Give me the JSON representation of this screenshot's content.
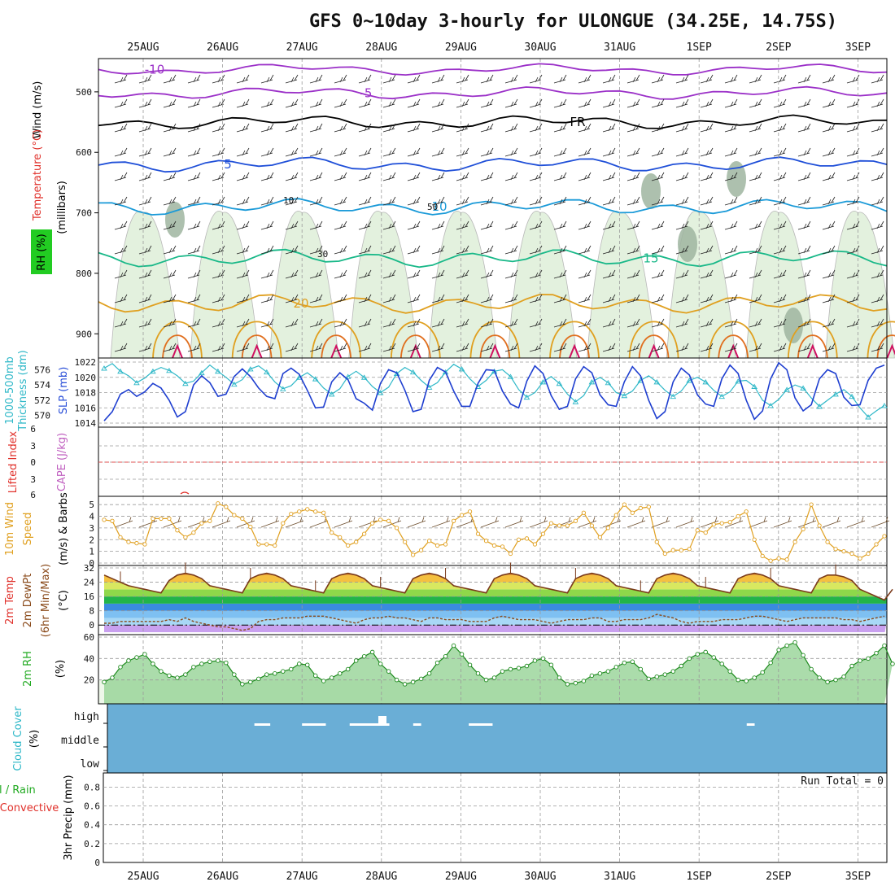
{
  "title": "GFS 0~10day 3-hourly for ULONGUE (34.25E, 14.75S)",
  "dates": [
    "25AUG",
    "26AUG",
    "27AUG",
    "28AUG",
    "29AUG",
    "30AUG",
    "31AUG",
    "1SEP",
    "2SEP",
    "3SEP"
  ],
  "chart_data": [
    {
      "type": "contour",
      "panel": "upper-air",
      "ylabels": [
        "Wind (m/s)",
        "Temperature (°C)",
        "(millibars)",
        "RH (%)"
      ],
      "ylabel_colors": [
        "#000000",
        "#e0302a",
        "#000000",
        "#22aa22"
      ],
      "yticks": [
        500,
        600,
        700,
        800,
        900
      ],
      "ylim": [
        940,
        445
      ],
      "temperature_isotherms": [
        {
          "label": "-10",
          "pressure_mb": 463,
          "color": "#9b30c8"
        },
        {
          "label": "-5",
          "pressure_mb": 502,
          "color": "#9b30c8"
        },
        {
          "label": "FR",
          "pressure_mb": 550,
          "color": "#000000"
        },
        {
          "label": "5",
          "pressure_mb": 620,
          "color": "#1f4fd8"
        },
        {
          "label": "10",
          "pressure_mb": 690,
          "color": "#1a9ad8"
        },
        {
          "label": "15",
          "pressure_mb": 775,
          "color": "#18b888"
        },
        {
          "label": "20",
          "pressure_mb": 850,
          "color": "#e0a020"
        }
      ],
      "rh_labels": [
        "10",
        "30",
        "50"
      ]
    },
    {
      "type": "line",
      "panel": "slp-thickness",
      "ylabels": [
        "1000-500mb",
        "Thickness (dm)",
        "SLP (mb)"
      ],
      "ylabel_colors": [
        "#2fb8c8",
        "#2fb8c8",
        "#2a4fd8"
      ],
      "series": [
        {
          "name": "SLP",
          "color": "#1f3fd0",
          "axis": [
            1014,
            1022
          ],
          "values": [
            1014.3,
            1015.5,
            1017.8,
            1018.4,
            1017.5,
            1018.1,
            1019.2,
            1018.6,
            1017.0,
            1014.8,
            1015.5,
            1019.0,
            1020.2,
            1019.3,
            1017.5,
            1017.8,
            1020.1,
            1021.1,
            1020.1,
            1018.6,
            1017.5,
            1017.2,
            1020.5,
            1021.2,
            1020.4,
            1018.3,
            1016.0,
            1016.1,
            1019.4,
            1020.6,
            1019.7,
            1017.2,
            1016.6,
            1015.7,
            1019.2,
            1021.0,
            1020.6,
            1018.3,
            1015.5,
            1015.8,
            1019.6,
            1021.3,
            1020.7,
            1018.2,
            1016.2,
            1016.2,
            1019.2,
            1021.0,
            1020.9,
            1018.2,
            1016.5,
            1016.0,
            1019.5,
            1021.5,
            1020.5,
            1017.6,
            1015.8,
            1016.2,
            1019.8,
            1021.4,
            1020.6,
            1017.7,
            1016.4,
            1016.2,
            1019.4,
            1021.4,
            1020.2,
            1017.0,
            1014.6,
            1015.5,
            1019.4,
            1021.2,
            1020.3,
            1017.7,
            1016.5,
            1016.2,
            1019.8,
            1021.6,
            1020.5,
            1017.0,
            1014.5,
            1015.6,
            1019.8,
            1021.9,
            1021.0,
            1017.3,
            1015.6,
            1016.4,
            1019.8,
            1021.0,
            1020.5,
            1017.4,
            1016.3,
            1016.4,
            1019.6,
            1021.2,
            1021.6
          ]
        },
        {
          "name": "Thickness",
          "color": "#2fb8c8",
          "axis": [
            569,
            577
          ],
          "values": [
            576.2,
            576.8,
            575.8,
            575.2,
            574.3,
            574.9,
            575.8,
            576.3,
            575.9,
            575.2,
            574.2,
            574.5,
            575.6,
            576.6,
            575.8,
            575.0,
            574.1,
            574.7,
            576.1,
            576.5,
            575.7,
            574.4,
            573.5,
            573.9,
            575.0,
            575.6,
            574.8,
            573.6,
            572.8,
            573.5,
            575.1,
            575.8,
            575.0,
            573.8,
            573.0,
            573.7,
            575.5,
            576.3,
            575.7,
            574.6,
            573.7,
            574.3,
            575.7,
            576.7,
            576.1,
            574.8,
            573.8,
            574.6,
            575.8,
            576.0,
            575.1,
            573.4,
            572.4,
            573.0,
            574.4,
            575.1,
            574.2,
            572.8,
            571.8,
            572.6,
            574.4,
            575.0,
            574.3,
            573.0,
            572.6,
            573.2,
            574.6,
            575.2,
            574.4,
            573.3,
            572.5,
            573.2,
            574.6,
            575.0,
            574.4,
            573.3,
            572.5,
            573.1,
            574.5,
            574.6,
            573.8,
            572.0,
            571.3,
            572.1,
            573.4,
            574.0,
            573.6,
            572.3,
            571.2,
            572.0,
            572.8,
            573.4,
            572.5,
            571.0,
            569.8,
            570.6,
            571.3
          ]
        }
      ],
      "yticks_left": [
        570,
        572,
        574,
        576
      ],
      "yticks_right": [
        1014,
        1016,
        1018,
        1020,
        1022
      ]
    },
    {
      "type": "line",
      "panel": "stability",
      "ylabels": [
        "Lifted Index",
        "CAPE (J/kg)"
      ],
      "ylabel_colors": [
        "#e0302a",
        "#c060c0"
      ],
      "yticks": [
        "6",
        "3",
        "0",
        "3",
        "6"
      ],
      "series": [
        {
          "name": "Lifted Index",
          "color": "#e0302a",
          "values": []
        }
      ]
    },
    {
      "type": "line",
      "panel": "wind10m",
      "ylabels": [
        "10m Wind",
        "Speed",
        "(m/s) & Barbs"
      ],
      "ylabel_colors": [
        "#e0a020",
        "#e0a020",
        "#000000"
      ],
      "yticks": [
        0,
        1,
        2,
        3,
        4,
        5
      ],
      "ylim": [
        0,
        5.5
      ],
      "series": [
        {
          "name": "Speed",
          "color": "#e0a020",
          "values": [
            3.7,
            3.6,
            2.2,
            1.8,
            1.7,
            1.6,
            3.8,
            3.8,
            3.8,
            2.8,
            2.2,
            2.6,
            3.4,
            3.6,
            5.1,
            4.8,
            4.1,
            3.8,
            3.1,
            1.6,
            1.6,
            1.5,
            3.4,
            4.2,
            4.4,
            4.6,
            4.4,
            4.3,
            2.6,
            2.2,
            1.5,
            1.8,
            2.5,
            3.4,
            3.7,
            3.6,
            3.0,
            1.8,
            0.7,
            1.1,
            1.9,
            1.5,
            1.6,
            3.6,
            4.1,
            4.4,
            2.5,
            1.9,
            1.5,
            1.4,
            0.8,
            2.0,
            2.1,
            1.6,
            2.5,
            3.4,
            3.2,
            3.2,
            3.6,
            4.3,
            3.2,
            2.2,
            3.0,
            4.1,
            5.0,
            4.3,
            4.7,
            4.8,
            1.8,
            0.8,
            1.1,
            1.1,
            1.2,
            2.8,
            2.6,
            3.3,
            3.4,
            3.5,
            4.0,
            4.4,
            2.0,
            0.6,
            0.2,
            0.4,
            0.3,
            1.8,
            2.9,
            5.0,
            3.2,
            1.8,
            1.2,
            1.0,
            0.8,
            0.4,
            0.8,
            1.6,
            2.3
          ]
        }
      ]
    },
    {
      "type": "area",
      "panel": "temperature2m",
      "ylabels": [
        "2m Temp",
        "2m DewPt",
        "(6hr Min/Max)",
        "(°C)"
      ],
      "ylabel_colors": [
        "#e0302a",
        "#8a4a1a",
        "#8a4a1a",
        "#000000"
      ],
      "yticks": [
        0,
        8,
        16,
        24,
        32
      ],
      "ylim": [
        -4,
        32
      ],
      "series": [
        {
          "name": "Temp",
          "color": "#7a3a1a",
          "values": [
            28,
            26,
            24,
            22,
            21,
            20,
            19,
            18,
            25,
            28,
            29,
            28,
            26,
            22,
            21,
            20,
            19,
            18,
            26,
            28,
            29,
            28,
            26,
            22,
            21,
            20,
            19,
            18,
            26,
            28,
            29,
            28,
            26,
            22,
            21,
            20,
            19,
            18,
            26,
            28,
            29,
            28,
            26,
            22,
            21,
            20,
            19,
            18,
            26,
            28,
            29,
            28,
            26,
            22,
            21,
            20,
            19,
            18,
            26,
            28,
            29,
            28,
            26,
            22,
            21,
            20,
            19,
            18,
            26,
            28,
            29,
            28,
            26,
            22,
            21,
            20,
            19,
            18,
            26,
            28,
            29,
            28,
            26,
            22,
            21,
            20,
            19,
            18,
            26,
            28,
            28,
            27,
            25,
            20,
            18,
            16,
            14,
            20
          ]
        },
        {
          "name": "DewPt",
          "color": "#8a4a1a",
          "values": [
            1,
            1,
            2,
            2,
            2,
            2,
            2,
            2,
            3,
            2,
            4,
            2,
            1,
            0,
            -1,
            -1,
            -2,
            -3,
            -2,
            2,
            3,
            3,
            4,
            4,
            4,
            5,
            5,
            5,
            4,
            3,
            2,
            1,
            3,
            4,
            4,
            5,
            4,
            4,
            3,
            2,
            4,
            4,
            3,
            3,
            3,
            2,
            2,
            2,
            4,
            5,
            4,
            3,
            3,
            3,
            2,
            1,
            2,
            3,
            3,
            3,
            4,
            4,
            2,
            2,
            3,
            3,
            3,
            4,
            6,
            5,
            4,
            2,
            1,
            2,
            2,
            2,
            3,
            3,
            3,
            4,
            5,
            5,
            4,
            3,
            2,
            3,
            4,
            4,
            4,
            4,
            4,
            3,
            3,
            2,
            3,
            4,
            5
          ]
        }
      ]
    },
    {
      "type": "area",
      "panel": "rh2m",
      "ylabels": [
        "2m RH",
        "(%)"
      ],
      "ylabel_colors": [
        "#22aa22",
        "#000000"
      ],
      "yticks": [
        20,
        40,
        60
      ],
      "ylim": [
        0,
        60
      ],
      "series": [
        {
          "name": "RH",
          "color": "#22aa22",
          "values": [
            18,
            22,
            32,
            38,
            41,
            44,
            35,
            28,
            24,
            22,
            25,
            32,
            35,
            37,
            38,
            36,
            25,
            16,
            18,
            21,
            25,
            26,
            28,
            30,
            35,
            34,
            24,
            19,
            22,
            26,
            30,
            38,
            42,
            46,
            35,
            28,
            20,
            16,
            18,
            21,
            26,
            36,
            42,
            52,
            44,
            34,
            26,
            20,
            22,
            28,
            30,
            31,
            33,
            38,
            40,
            34,
            22,
            16,
            17,
            19,
            24,
            26,
            28,
            32,
            36,
            37,
            30,
            21,
            23,
            25,
            28,
            33,
            40,
            44,
            46,
            41,
            35,
            28,
            20,
            19,
            22,
            27,
            36,
            48,
            52,
            55,
            43,
            30,
            22,
            18,
            20,
            23,
            33,
            38,
            40,
            45,
            52,
            35
          ]
        }
      ]
    },
    {
      "type": "area",
      "panel": "cloud-cover",
      "ylabels": [
        "Cloud Cover",
        "(%)"
      ],
      "ylabel_colors": [
        "#2fb8c8",
        "#000000"
      ],
      "yticks": [
        "high",
        "middle",
        "low"
      ],
      "high_cloud_gaps": [
        [
          1.9,
          2.1
        ],
        [
          2.5,
          2.8
        ],
        [
          3.1,
          3.6
        ],
        [
          3.9,
          4.0
        ],
        [
          4.6,
          4.9
        ],
        [
          8.1,
          8.2
        ]
      ]
    },
    {
      "type": "bar",
      "panel": "precip",
      "ylabels": [
        "3hr Precip (mm)",
        "Total / Rain",
        "Convective"
      ],
      "ylabel_colors": [
        "#000000",
        "#22aa22",
        "#e0302a"
      ],
      "yticks": [
        0,
        0.2,
        0.4,
        0.6,
        0.8
      ],
      "ylim": [
        0,
        0.95
      ],
      "annotation": "Run Total = 0",
      "values": []
    }
  ]
}
